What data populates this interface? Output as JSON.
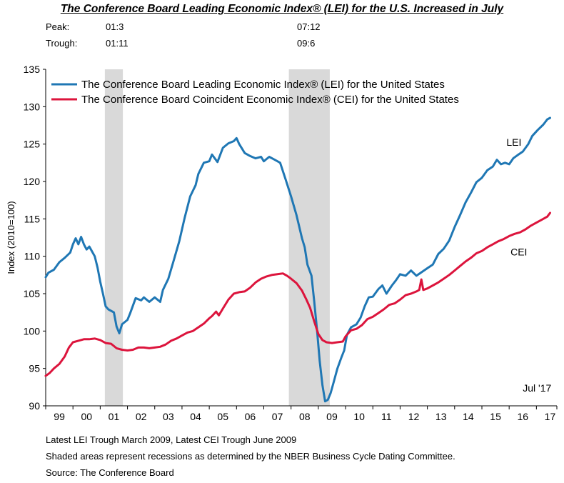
{
  "title": "The Conference Board Leading Economic Index® (LEI) for the U.S. Increased in July",
  "peak_trough": {
    "peak_label": "Peak:",
    "trough_label": "Trough:",
    "peaks": [
      "01:3",
      "07:12"
    ],
    "troughs": [
      "01:11",
      "09:6"
    ]
  },
  "footnotes": [
    "Latest LEI Trough March 2009, Latest CEI Trough June 2009",
    "Shaded areas represent recessions as determined by the NBER Business Cycle Dating Committee.",
    "Source: The Conference Board"
  ],
  "chart_data": {
    "type": "line",
    "ylabel": "Index (2010=100)",
    "ylim": [
      90,
      135
    ],
    "yticks": [
      90,
      95,
      100,
      105,
      110,
      115,
      120,
      125,
      130,
      135
    ],
    "xlim": [
      1999.0,
      2017.75
    ],
    "xticks": [
      {
        "label": "99",
        "year": 1999
      },
      {
        "label": "00",
        "year": 2000
      },
      {
        "label": "01",
        "year": 2001
      },
      {
        "label": "02",
        "year": 2002
      },
      {
        "label": "03",
        "year": 2003
      },
      {
        "label": "04",
        "year": 2004
      },
      {
        "label": "05",
        "year": 2005
      },
      {
        "label": "06",
        "year": 2006
      },
      {
        "label": "07",
        "year": 2007
      },
      {
        "label": "08",
        "year": 2008
      },
      {
        "label": "09",
        "year": 2009
      },
      {
        "label": "10",
        "year": 2010
      },
      {
        "label": "11",
        "year": 2011
      },
      {
        "label": "12",
        "year": 2012
      },
      {
        "label": "13",
        "year": 2013
      },
      {
        "label": "14",
        "year": 2014
      },
      {
        "label": "15",
        "year": 2015
      },
      {
        "label": "16",
        "year": 2016
      },
      {
        "label": "17",
        "year": 2017
      }
    ],
    "recessions": [
      {
        "start": 2001.17,
        "end": 2001.83
      },
      {
        "start": 2007.92,
        "end": 2009.42
      }
    ],
    "legend_position": "top-left",
    "series": [
      {
        "name": "The Conference Board Leading Economic Index® (LEI) for the United States",
        "label": "LEI",
        "color": "#1f77b4",
        "points": [
          [
            1999.0,
            107.2
          ],
          [
            1999.1,
            107.8
          ],
          [
            1999.3,
            108.2
          ],
          [
            1999.5,
            109.2
          ],
          [
            1999.7,
            109.8
          ],
          [
            1999.9,
            110.5
          ],
          [
            2000.0,
            111.6
          ],
          [
            2000.1,
            112.4
          ],
          [
            2000.2,
            111.6
          ],
          [
            2000.3,
            112.6
          ],
          [
            2000.4,
            111.6
          ],
          [
            2000.5,
            110.9
          ],
          [
            2000.6,
            111.3
          ],
          [
            2000.8,
            110.0
          ],
          [
            2000.9,
            108.5
          ],
          [
            2001.0,
            106.6
          ],
          [
            2001.1,
            105.0
          ],
          [
            2001.2,
            103.3
          ],
          [
            2001.3,
            102.9
          ],
          [
            2001.5,
            102.5
          ],
          [
            2001.6,
            100.6
          ],
          [
            2001.7,
            99.7
          ],
          [
            2001.8,
            100.9
          ],
          [
            2002.0,
            101.5
          ],
          [
            2002.1,
            102.4
          ],
          [
            2002.3,
            104.4
          ],
          [
            2002.5,
            104.1
          ],
          [
            2002.6,
            104.5
          ],
          [
            2002.8,
            103.9
          ],
          [
            2003.0,
            104.5
          ],
          [
            2003.2,
            103.9
          ],
          [
            2003.3,
            105.5
          ],
          [
            2003.5,
            107.0
          ],
          [
            2003.7,
            109.5
          ],
          [
            2003.9,
            112.0
          ],
          [
            2004.1,
            115.2
          ],
          [
            2004.3,
            118.0
          ],
          [
            2004.5,
            119.5
          ],
          [
            2004.6,
            121.0
          ],
          [
            2004.8,
            122.5
          ],
          [
            2005.0,
            122.7
          ],
          [
            2005.1,
            123.6
          ],
          [
            2005.3,
            122.6
          ],
          [
            2005.5,
            124.5
          ],
          [
            2005.7,
            125.1
          ],
          [
            2005.9,
            125.4
          ],
          [
            2006.0,
            125.8
          ],
          [
            2006.1,
            125.0
          ],
          [
            2006.3,
            123.8
          ],
          [
            2006.5,
            123.4
          ],
          [
            2006.7,
            123.1
          ],
          [
            2006.9,
            123.3
          ],
          [
            2007.0,
            122.7
          ],
          [
            2007.2,
            123.3
          ],
          [
            2007.4,
            122.9
          ],
          [
            2007.6,
            122.5
          ],
          [
            2007.8,
            120.3
          ],
          [
            2008.0,
            118.0
          ],
          [
            2008.2,
            115.5
          ],
          [
            2008.4,
            112.4
          ],
          [
            2008.5,
            111.2
          ],
          [
            2008.6,
            108.9
          ],
          [
            2008.75,
            107.4
          ],
          [
            2008.85,
            104.0
          ],
          [
            2008.95,
            100.2
          ],
          [
            2009.05,
            96.0
          ],
          [
            2009.15,
            92.8
          ],
          [
            2009.25,
            90.6
          ],
          [
            2009.35,
            90.8
          ],
          [
            2009.45,
            91.7
          ],
          [
            2009.55,
            93.0
          ],
          [
            2009.7,
            95.0
          ],
          [
            2009.85,
            96.5
          ],
          [
            2009.95,
            97.4
          ],
          [
            2010.05,
            99.5
          ],
          [
            2010.2,
            100.5
          ],
          [
            2010.4,
            100.9
          ],
          [
            2010.55,
            101.8
          ],
          [
            2010.7,
            103.3
          ],
          [
            2010.85,
            104.5
          ],
          [
            2011.0,
            104.6
          ],
          [
            2011.2,
            105.6
          ],
          [
            2011.35,
            106.1
          ],
          [
            2011.5,
            105.0
          ],
          [
            2011.7,
            106.1
          ],
          [
            2011.85,
            106.8
          ],
          [
            2012.0,
            107.6
          ],
          [
            2012.2,
            107.4
          ],
          [
            2012.4,
            108.1
          ],
          [
            2012.6,
            107.4
          ],
          [
            2012.8,
            107.9
          ],
          [
            2013.0,
            108.4
          ],
          [
            2013.2,
            108.9
          ],
          [
            2013.4,
            110.3
          ],
          [
            2013.6,
            111.0
          ],
          [
            2013.8,
            112.1
          ],
          [
            2014.0,
            113.9
          ],
          [
            2014.2,
            115.5
          ],
          [
            2014.4,
            117.2
          ],
          [
            2014.6,
            118.5
          ],
          [
            2014.8,
            119.9
          ],
          [
            2015.0,
            120.5
          ],
          [
            2015.2,
            121.5
          ],
          [
            2015.4,
            122.0
          ],
          [
            2015.55,
            122.9
          ],
          [
            2015.7,
            122.3
          ],
          [
            2015.85,
            122.5
          ],
          [
            2016.0,
            122.3
          ],
          [
            2016.15,
            123.1
          ],
          [
            2016.3,
            123.5
          ],
          [
            2016.5,
            124.0
          ],
          [
            2016.7,
            125.0
          ],
          [
            2016.85,
            126.1
          ],
          [
            2017.05,
            126.9
          ],
          [
            2017.25,
            127.6
          ],
          [
            2017.4,
            128.3
          ],
          [
            2017.5,
            128.5
          ]
        ]
      },
      {
        "name": "The Conference Board Coincident Economic Index® (CEI) for the United States",
        "label": "CEI",
        "color": "#dc143c",
        "points": [
          [
            1999.0,
            94.0
          ],
          [
            1999.15,
            94.4
          ],
          [
            1999.3,
            95.0
          ],
          [
            1999.5,
            95.6
          ],
          [
            1999.7,
            96.6
          ],
          [
            1999.85,
            97.8
          ],
          [
            2000.0,
            98.5
          ],
          [
            2000.2,
            98.7
          ],
          [
            2000.4,
            98.9
          ],
          [
            2000.6,
            98.9
          ],
          [
            2000.8,
            99.0
          ],
          [
            2001.0,
            98.8
          ],
          [
            2001.2,
            98.4
          ],
          [
            2001.4,
            98.3
          ],
          [
            2001.6,
            97.7
          ],
          [
            2001.8,
            97.5
          ],
          [
            2002.0,
            97.4
          ],
          [
            2002.2,
            97.5
          ],
          [
            2002.4,
            97.8
          ],
          [
            2002.6,
            97.8
          ],
          [
            2002.8,
            97.7
          ],
          [
            2003.0,
            97.8
          ],
          [
            2003.2,
            97.9
          ],
          [
            2003.4,
            98.2
          ],
          [
            2003.6,
            98.7
          ],
          [
            2003.8,
            99.0
          ],
          [
            2004.0,
            99.4
          ],
          [
            2004.2,
            99.8
          ],
          [
            2004.4,
            100.0
          ],
          [
            2004.6,
            100.5
          ],
          [
            2004.8,
            101.0
          ],
          [
            2005.0,
            101.7
          ],
          [
            2005.1,
            102.0
          ],
          [
            2005.25,
            102.6
          ],
          [
            2005.35,
            102.1
          ],
          [
            2005.5,
            103.0
          ],
          [
            2005.7,
            104.2
          ],
          [
            2005.9,
            105.0
          ],
          [
            2006.1,
            105.2
          ],
          [
            2006.3,
            105.3
          ],
          [
            2006.5,
            105.8
          ],
          [
            2006.7,
            106.5
          ],
          [
            2006.9,
            107.0
          ],
          [
            2007.1,
            107.3
          ],
          [
            2007.3,
            107.5
          ],
          [
            2007.5,
            107.6
          ],
          [
            2007.7,
            107.7
          ],
          [
            2007.85,
            107.4
          ],
          [
            2008.0,
            107.0
          ],
          [
            2008.2,
            106.4
          ],
          [
            2008.4,
            105.4
          ],
          [
            2008.55,
            104.3
          ],
          [
            2008.7,
            103.1
          ],
          [
            2008.85,
            101.3
          ],
          [
            2009.0,
            99.6
          ],
          [
            2009.15,
            98.8
          ],
          [
            2009.3,
            98.5
          ],
          [
            2009.5,
            98.4
          ],
          [
            2009.7,
            98.5
          ],
          [
            2009.9,
            98.6
          ],
          [
            2010.0,
            99.3
          ],
          [
            2010.2,
            100.1
          ],
          [
            2010.4,
            100.3
          ],
          [
            2010.6,
            100.8
          ],
          [
            2010.8,
            101.6
          ],
          [
            2011.0,
            101.9
          ],
          [
            2011.2,
            102.4
          ],
          [
            2011.4,
            102.9
          ],
          [
            2011.6,
            103.5
          ],
          [
            2011.8,
            103.7
          ],
          [
            2012.0,
            104.2
          ],
          [
            2012.2,
            104.8
          ],
          [
            2012.4,
            105.0
          ],
          [
            2012.6,
            105.3
          ],
          [
            2012.7,
            105.5
          ],
          [
            2012.78,
            106.9
          ],
          [
            2012.85,
            105.5
          ],
          [
            2013.0,
            105.7
          ],
          [
            2013.2,
            106.1
          ],
          [
            2013.4,
            106.5
          ],
          [
            2013.6,
            107.0
          ],
          [
            2013.8,
            107.5
          ],
          [
            2014.0,
            108.1
          ],
          [
            2014.2,
            108.7
          ],
          [
            2014.4,
            109.3
          ],
          [
            2014.6,
            109.8
          ],
          [
            2014.8,
            110.4
          ],
          [
            2015.0,
            110.7
          ],
          [
            2015.2,
            111.2
          ],
          [
            2015.4,
            111.6
          ],
          [
            2015.6,
            112.0
          ],
          [
            2015.8,
            112.3
          ],
          [
            2016.0,
            112.7
          ],
          [
            2016.2,
            113.0
          ],
          [
            2016.4,
            113.2
          ],
          [
            2016.6,
            113.6
          ],
          [
            2016.8,
            114.1
          ],
          [
            2017.0,
            114.5
          ],
          [
            2017.2,
            114.9
          ],
          [
            2017.4,
            115.3
          ],
          [
            2017.5,
            115.8
          ]
        ]
      }
    ],
    "annotations": [
      {
        "text": "LEI",
        "x": 2015.9,
        "y": 124.8
      },
      {
        "text": "CEI",
        "x": 2016.05,
        "y": 110.1
      },
      {
        "text": "Jul '17",
        "x": 2016.5,
        "y": 91.9
      }
    ]
  }
}
